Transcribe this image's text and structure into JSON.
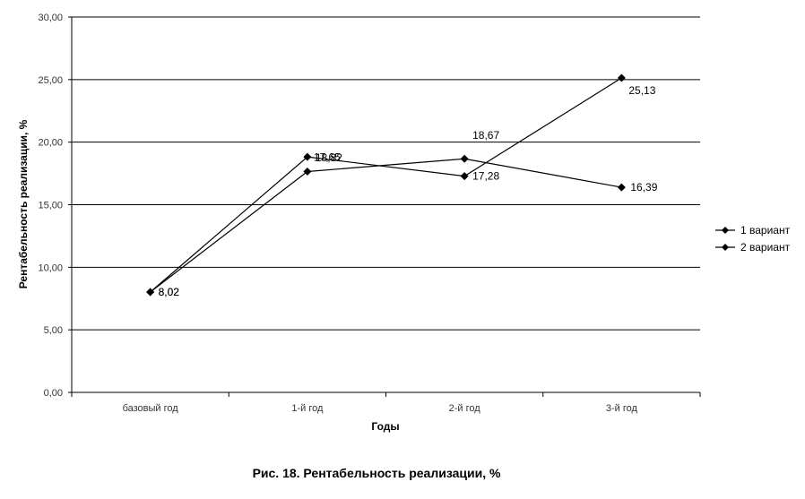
{
  "chart_data": {
    "type": "line",
    "categories": [
      "базовый год",
      "1-й год",
      "2-й год",
      "3-й год"
    ],
    "series": [
      {
        "name": "1 вариант",
        "values": [
          8.02,
          18.82,
          17.28,
          25.13
        ],
        "labels": [
          "8,02",
          "18,82",
          "17,28",
          "25,13"
        ]
      },
      {
        "name": "2 вариант",
        "values": [
          8.02,
          17.65,
          18.67,
          16.39
        ],
        "labels": [
          "8,02",
          "17,65",
          "18,67",
          "16,39"
        ]
      }
    ],
    "xlabel": "Годы",
    "ylabel": "Рентабельность реализации, %",
    "ylim": [
      0,
      30
    ],
    "yticks": [
      "0,00",
      "5,00",
      "10,00",
      "15,00",
      "20,00",
      "25,00",
      "30,00"
    ],
    "grid": true,
    "legend": "right",
    "color": "#000000"
  },
  "caption": "Рис. 18. Рентабельность реализации, %"
}
